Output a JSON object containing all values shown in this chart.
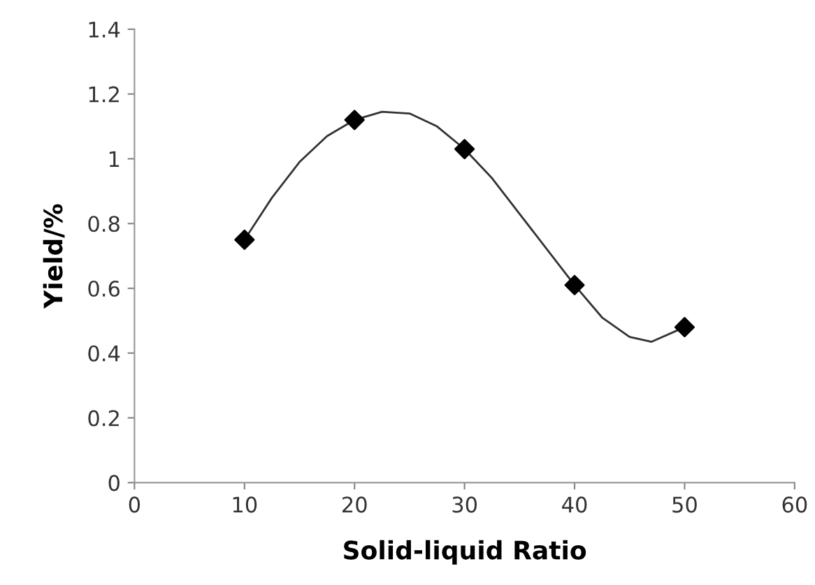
{
  "chart_data": {
    "type": "scatter",
    "xlabel": "Solid-liquid Ratio",
    "ylabel": "Yield/%",
    "xlim": [
      0,
      60
    ],
    "xticks": [
      0,
      10,
      20,
      30,
      40,
      50,
      60
    ],
    "ylim": [
      0,
      1.4
    ],
    "yticks": [
      0,
      {
        "value": 0.2,
        "label": "0.2"
      },
      {
        "value": 0.4,
        "label": "0.4"
      },
      {
        "value": 0.6,
        "label": "0.6"
      },
      {
        "value": 0.8,
        "label": "0.8"
      },
      1,
      {
        "value": 1.2,
        "label": "1.2"
      },
      {
        "value": 1.4,
        "label": "1.4"
      }
    ],
    "grid": false,
    "legend": false,
    "series": [
      {
        "color": "#000000",
        "marker": "diamond",
        "x": [
          10,
          20,
          30,
          40,
          50
        ],
        "values": [
          0.75,
          1.12,
          1.03,
          0.61,
          0.48
        ]
      },
      {
        "type": "line",
        "color": "#333333",
        "marker": "none",
        "line_style": "solid",
        "x": [
          10,
          12.5,
          15,
          17.5,
          20,
          22.5,
          25,
          27.5,
          30,
          32.5,
          35,
          37.5,
          40,
          42.5,
          45,
          47,
          50
        ],
        "values": [
          0.75,
          0.88,
          0.99,
          1.07,
          1.12,
          1.145,
          1.14,
          1.1,
          1.03,
          0.94,
          0.83,
          0.72,
          0.61,
          0.51,
          0.45,
          0.435,
          0.48
        ]
      }
    ]
  }
}
